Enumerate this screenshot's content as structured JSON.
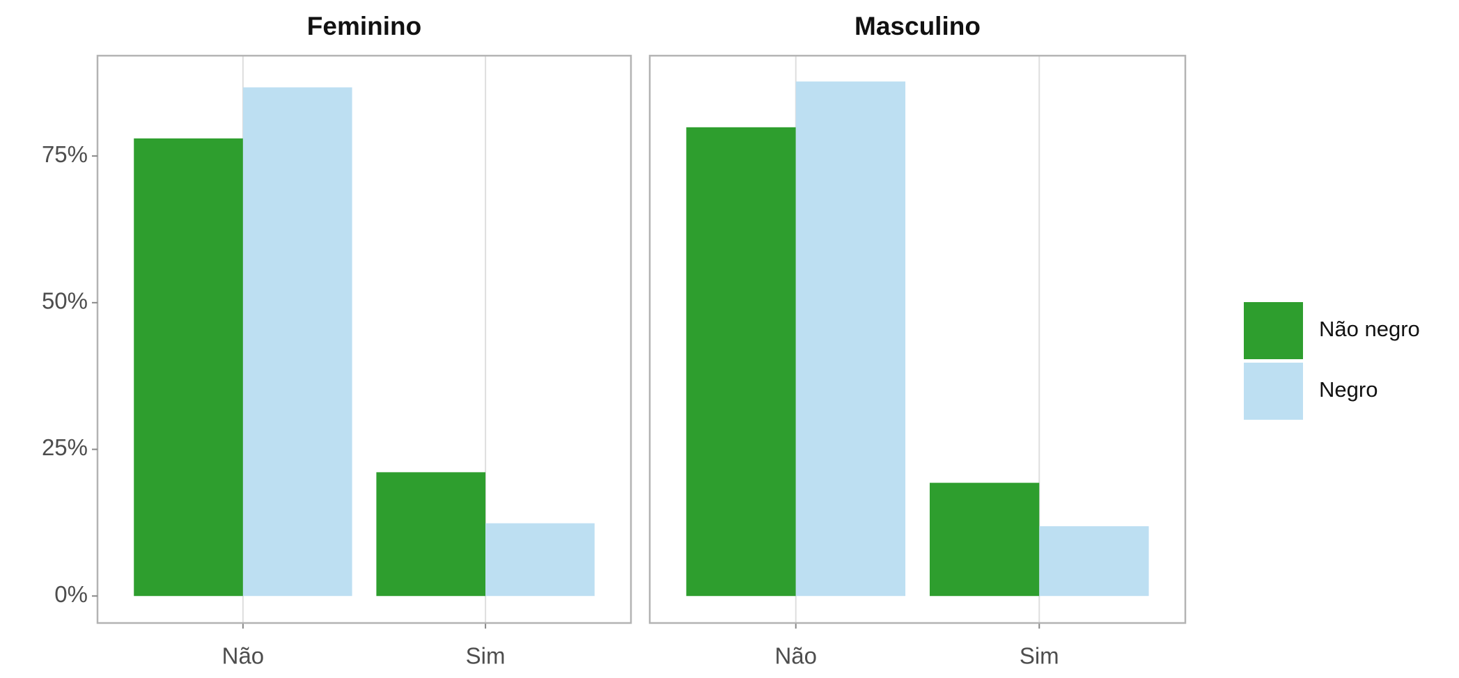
{
  "chart_data": {
    "type": "bar",
    "facets": [
      "Feminino",
      "Masculino"
    ],
    "categories": [
      "Não",
      "Sim"
    ],
    "series": [
      {
        "name": "Não negro",
        "color": "#2e9e2e",
        "values": [
          [
            78.0,
            21.1
          ],
          [
            79.9,
            19.3
          ]
        ]
      },
      {
        "name": "Negro",
        "color": "#bddff2",
        "values": [
          [
            86.7,
            12.4
          ],
          [
            87.7,
            11.9
          ]
        ]
      }
    ],
    "ylim": [
      -4.6,
      92.1
    ],
    "yticks": [
      {
        "value": 0,
        "label": "0%"
      },
      {
        "value": 25,
        "label": "25%"
      },
      {
        "value": 50,
        "label": "50%"
      },
      {
        "value": 75,
        "label": "75%"
      }
    ],
    "grid": true,
    "legend": "right"
  }
}
